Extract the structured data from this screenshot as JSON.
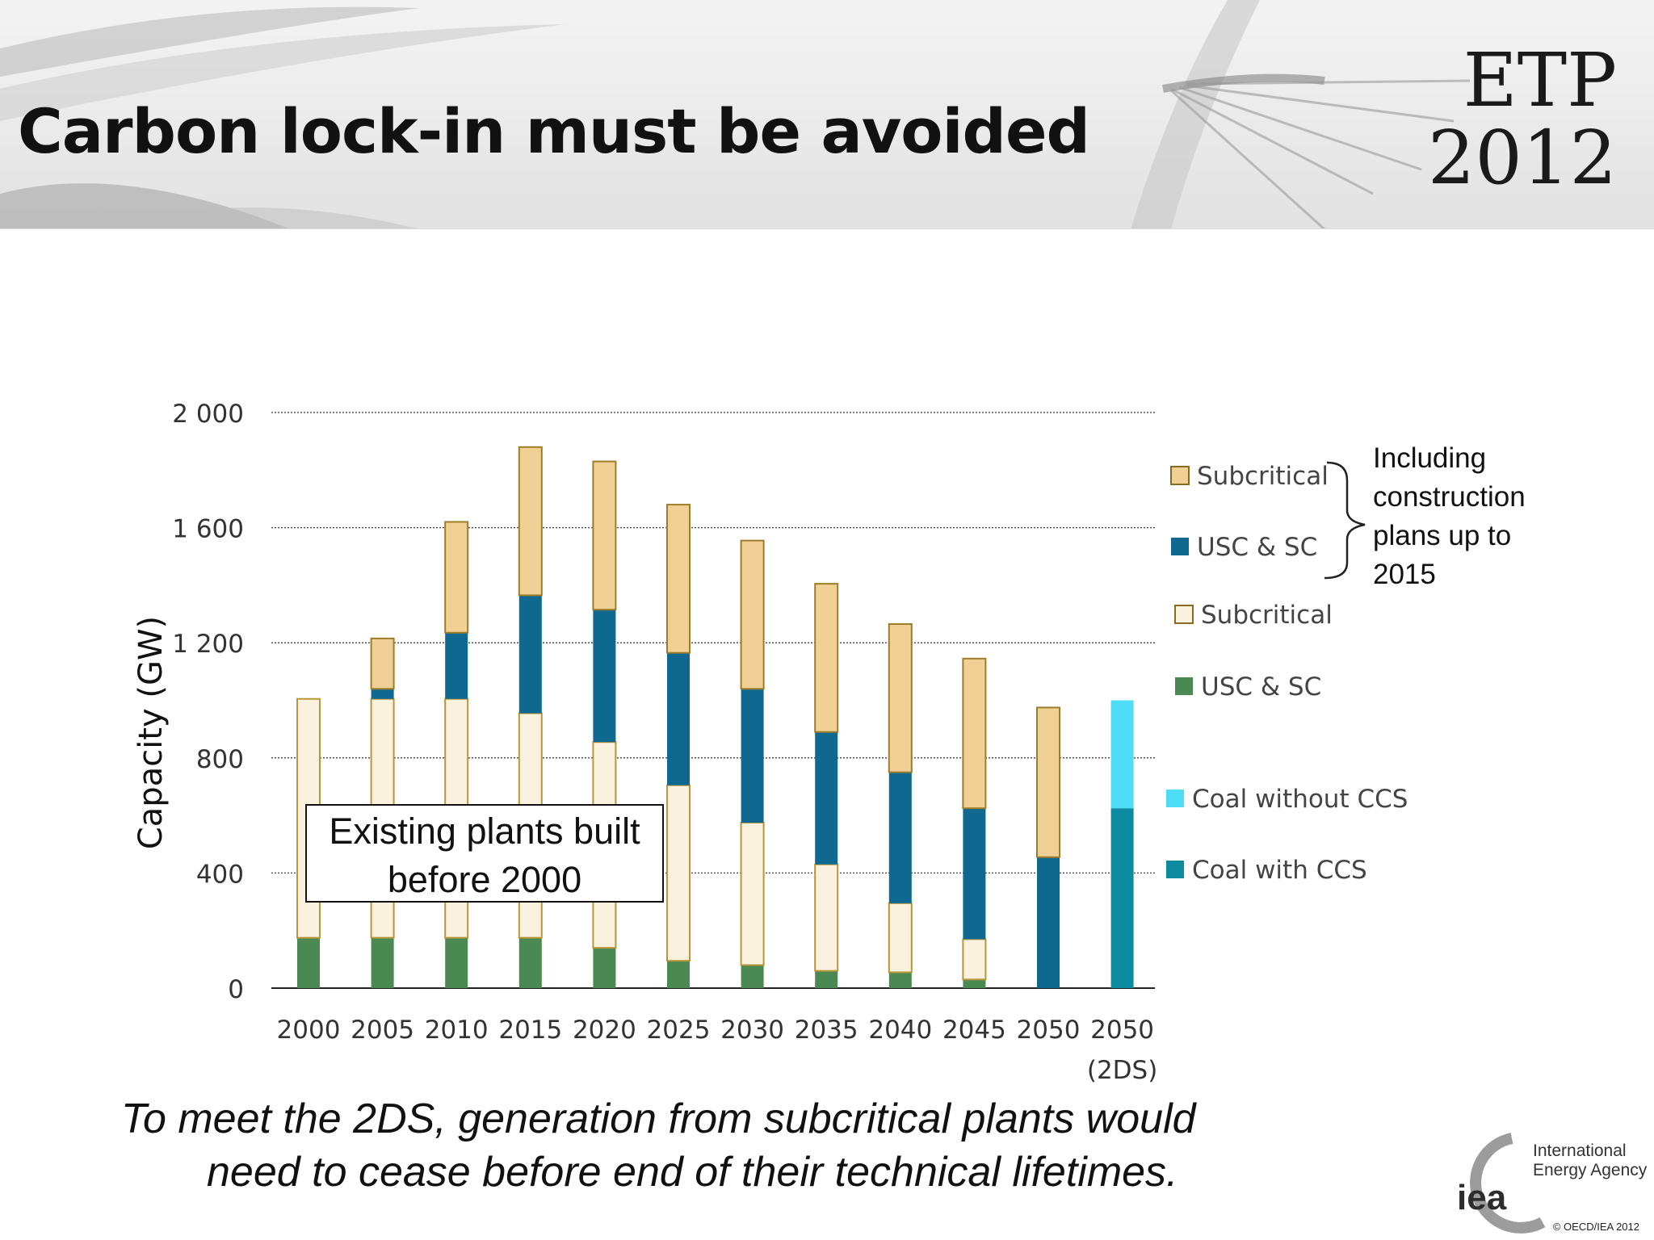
{
  "slide": {
    "title": "Carbon lock-in must be avoided",
    "logo_line1": "ETP",
    "logo_line2": "2012",
    "annotation_box": "Existing plants built before 2000",
    "brace_note": "Including\nconstruction\n plans up to\n2015",
    "caption_line1": "To meet the 2DS, generation from subcritical plants would",
    "caption_line2": "need to cease before end of their technical lifetimes.",
    "iea_mark": "iea",
    "iea_name": "International\nEnergy Agency",
    "copyright": "© OECD/IEA 2012"
  },
  "chart_data": {
    "type": "bar",
    "stacked": true,
    "ylabel": "Capacity (GW)",
    "ylim": [
      0,
      2000
    ],
    "yticks": [
      0,
      400,
      800,
      1200,
      1600,
      2000
    ],
    "ytick_labels": [
      "0",
      "400",
      "800",
      "1 200",
      "1 600",
      "2 000"
    ],
    "grid": "horizontal dotted",
    "legend_position": "right",
    "categories": [
      "2000",
      "2005",
      "2010",
      "2015",
      "2020",
      "2025",
      "2030",
      "2035",
      "2040",
      "2045",
      "2050",
      "2050 (2DS)"
    ],
    "category_lines": [
      [
        "2000"
      ],
      [
        "2005"
      ],
      [
        "2010"
      ],
      [
        "2015"
      ],
      [
        "2020"
      ],
      [
        "2025"
      ],
      [
        "2030"
      ],
      [
        "2035"
      ],
      [
        "2040"
      ],
      [
        "2045"
      ],
      [
        "2050"
      ],
      [
        "2050",
        "(2DS)"
      ]
    ],
    "series": [
      {
        "name": "USC & SC",
        "group": "existing",
        "color": "#4a8a52",
        "values": [
          175,
          175,
          175,
          175,
          140,
          95,
          80,
          60,
          55,
          30,
          0,
          0
        ]
      },
      {
        "name": "Subcritical",
        "group": "existing",
        "color": "#fbf1df",
        "values": [
          830,
          830,
          830,
          780,
          715,
          610,
          495,
          370,
          240,
          140,
          0,
          0
        ]
      },
      {
        "name": "USC & SC",
        "group": "new",
        "color": "#0e6890",
        "values": [
          0,
          35,
          230,
          410,
          460,
          460,
          465,
          460,
          455,
          455,
          455,
          0
        ]
      },
      {
        "name": "Subcritical",
        "group": "new",
        "color": "#f0d094",
        "values": [
          0,
          175,
          385,
          515,
          515,
          515,
          515,
          515,
          515,
          520,
          520,
          0
        ]
      },
      {
        "name": "Coal with CCS",
        "group": "2DS",
        "color": "#0d8aa0",
        "values": [
          0,
          0,
          0,
          0,
          0,
          0,
          0,
          0,
          0,
          0,
          0,
          625
        ]
      },
      {
        "name": "Coal without CCS",
        "group": "2DS",
        "color": "#4fdcf6",
        "values": [
          0,
          0,
          0,
          0,
          0,
          0,
          0,
          0,
          0,
          0,
          0,
          375
        ]
      }
    ],
    "legend": [
      {
        "label": "Subcritical",
        "color": "#f0d094"
      },
      {
        "label": "USC & SC",
        "color": "#0e6890"
      },
      {
        "label": "Subcritical",
        "color": "#fbf1df"
      },
      {
        "label": "USC & SC",
        "color": "#4a8a52"
      },
      {
        "label": "Coal without CCS",
        "color": "#4fdcf6"
      },
      {
        "label": "Coal with CCS",
        "color": "#0d8aa0"
      }
    ]
  }
}
